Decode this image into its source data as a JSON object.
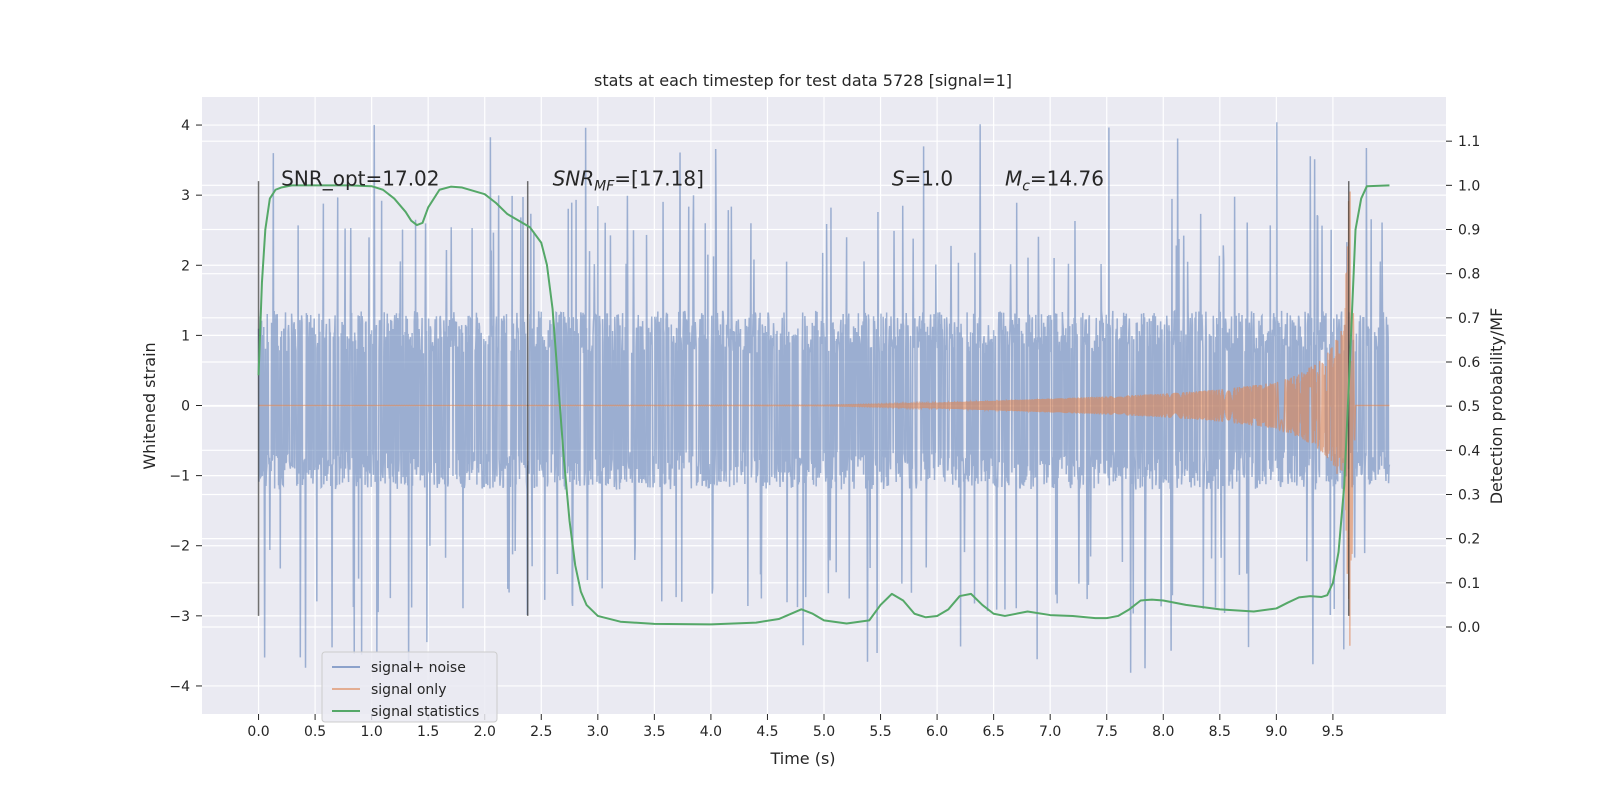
{
  "chart_data": {
    "type": "line",
    "title": "stats at each timestep for test data 5728 [signal=1]",
    "xlabel": "Time (s)",
    "ylabel_left": "Whitened strain",
    "ylabel_right": "Detection probability/MF",
    "xlim": [
      -0.5,
      10.5
    ],
    "ylim_left": [
      -4.4,
      4.4
    ],
    "ylim_right": [
      -0.197,
      1.2
    ],
    "x_ticks": [
      0.0,
      0.5,
      1.0,
      1.5,
      2.0,
      2.5,
      3.0,
      3.5,
      4.0,
      4.5,
      5.0,
      5.5,
      6.0,
      6.5,
      7.0,
      7.5,
      8.0,
      8.5,
      9.0,
      9.5
    ],
    "x_tick_labels": [
      "0.0",
      "0.5",
      "1.0",
      "1.5",
      "2.0",
      "2.5",
      "3.0",
      "3.5",
      "4.0",
      "4.5",
      "5.0",
      "5.5",
      "6.0",
      "6.5",
      "7.0",
      "7.5",
      "8.0",
      "8.5",
      "9.0",
      "9.5"
    ],
    "y_left_ticks": [
      -4,
      -3,
      -2,
      -1,
      0,
      1,
      2,
      3,
      4
    ],
    "y_left_tick_labels": [
      "−4",
      "−3",
      "−2",
      "−1",
      "0",
      "1",
      "2",
      "3",
      "4"
    ],
    "y_right_ticks": [
      0.0,
      0.1,
      0.2,
      0.3,
      0.4,
      0.5,
      0.6,
      0.7,
      0.8,
      0.9,
      1.0,
      1.1
    ],
    "y_right_tick_labels": [
      "0.0",
      "0.1",
      "0.2",
      "0.3",
      "0.4",
      "0.5",
      "0.6",
      "0.7",
      "0.8",
      "0.9",
      "1.0",
      "1.1"
    ],
    "grid": true,
    "background": "#eaeaf2",
    "legend_placement": "lower-left",
    "annotations": [
      {
        "x": 0.2,
        "y": 3.25,
        "text": "SNR_opt=17.02"
      },
      {
        "x": 2.6,
        "y": 3.25,
        "base": "SNR",
        "sub": "MF",
        "rest": "=[17.18]"
      },
      {
        "x": 5.6,
        "y": 3.25,
        "base": "S",
        "sub": "",
        "rest": "=1.0"
      },
      {
        "x": 6.6,
        "y": 3.25,
        "base": "M",
        "sub": "c",
        "rest": "=14.76"
      }
    ],
    "vertical_markers": [
      {
        "x": 0.0,
        "y": [
          -3.0,
          3.2
        ]
      },
      {
        "x": 2.38,
        "y": [
          -3.0,
          3.2
        ]
      },
      {
        "x": 9.64,
        "y": [
          -3.0,
          3.2
        ]
      }
    ],
    "series": [
      {
        "name": "signal+ noise",
        "color": "#4c72b0",
        "axis": "left",
        "x_range": [
          0.0,
          10.0
        ],
        "typical_amplitude": [
          -1.2,
          1.35
        ],
        "peak_min": -3.85,
        "peak_max": 4.05
      },
      {
        "name": "signal only",
        "color": "#dd8452",
        "axis": "left",
        "x": [
          0.0,
          5.0,
          5.5,
          6.0,
          6.5,
          7.0,
          7.5,
          8.0,
          8.5,
          9.0,
          9.2,
          9.4,
          9.5,
          9.6,
          9.65,
          9.7,
          10.0
        ],
        "envelope": [
          0.0,
          0.005,
          0.02,
          0.04,
          0.07,
          0.1,
          0.13,
          0.17,
          0.23,
          0.33,
          0.45,
          0.65,
          0.85,
          1.2,
          3.45,
          0.0,
          0.0
        ]
      },
      {
        "name": "signal statistics",
        "color": "#55a868",
        "axis": "right",
        "x": [
          0.0,
          0.03,
          0.06,
          0.1,
          0.15,
          0.2,
          0.3,
          0.5,
          0.8,
          1.0,
          1.1,
          1.2,
          1.3,
          1.35,
          1.4,
          1.45,
          1.5,
          1.6,
          1.7,
          1.8,
          2.0,
          2.1,
          2.2,
          2.3,
          2.4,
          2.5,
          2.55,
          2.6,
          2.65,
          2.7,
          2.75,
          2.8,
          2.85,
          2.9,
          3.0,
          3.2,
          3.5,
          4.0,
          4.4,
          4.6,
          4.8,
          4.9,
          5.0,
          5.2,
          5.4,
          5.5,
          5.6,
          5.7,
          5.8,
          5.9,
          6.0,
          6.1,
          6.2,
          6.3,
          6.4,
          6.5,
          6.6,
          6.8,
          7.0,
          7.2,
          7.4,
          7.5,
          7.6,
          7.7,
          7.8,
          7.9,
          8.0,
          8.2,
          8.5,
          8.8,
          9.0,
          9.1,
          9.2,
          9.3,
          9.4,
          9.45,
          9.5,
          9.55,
          9.6,
          9.65,
          9.7,
          9.75,
          9.8,
          10.0
        ],
        "y": [
          0.57,
          0.78,
          0.9,
          0.97,
          0.99,
          0.995,
          1.0,
          1.0,
          1.0,
          0.998,
          0.99,
          0.97,
          0.94,
          0.92,
          0.91,
          0.915,
          0.95,
          0.99,
          0.997,
          0.995,
          0.98,
          0.96,
          0.935,
          0.92,
          0.905,
          0.87,
          0.82,
          0.72,
          0.55,
          0.38,
          0.24,
          0.14,
          0.08,
          0.05,
          0.025,
          0.012,
          0.007,
          0.006,
          0.01,
          0.018,
          0.04,
          0.03,
          0.015,
          0.008,
          0.015,
          0.05,
          0.075,
          0.06,
          0.03,
          0.022,
          0.025,
          0.04,
          0.07,
          0.075,
          0.05,
          0.03,
          0.025,
          0.035,
          0.027,
          0.025,
          0.02,
          0.02,
          0.025,
          0.04,
          0.06,
          0.062,
          0.06,
          0.05,
          0.04,
          0.035,
          0.042,
          0.055,
          0.067,
          0.07,
          0.068,
          0.072,
          0.1,
          0.17,
          0.32,
          0.6,
          0.9,
          0.97,
          0.998,
          1.0
        ]
      }
    ]
  }
}
